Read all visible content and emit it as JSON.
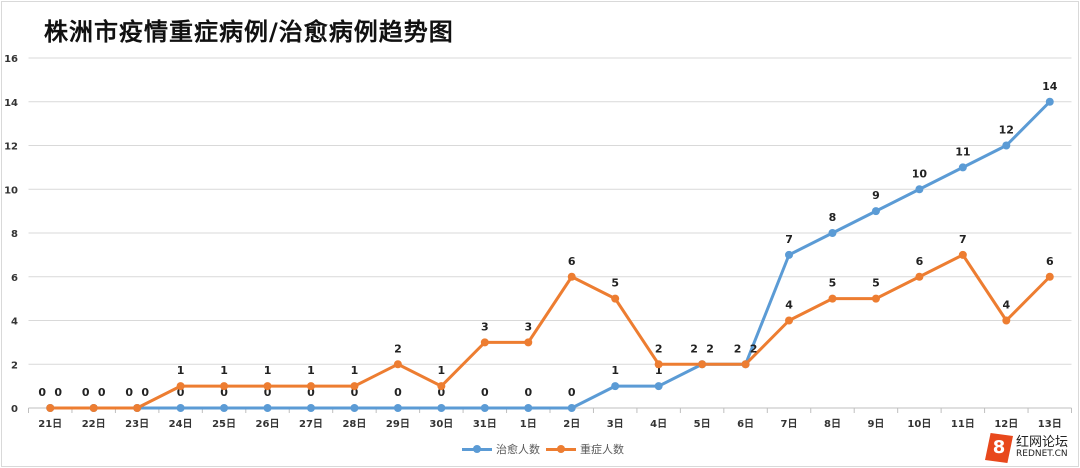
{
  "title": "株洲市疫情重症病例/治愈病例趋势图",
  "chart_data": {
    "type": "line",
    "title": "株洲市疫情重症病例/治愈病例趋势图",
    "xlabel": "",
    "ylabel": "",
    "categories": [
      "21日",
      "22日",
      "23日",
      "24日",
      "25日",
      "26日",
      "27日",
      "28日",
      "29日",
      "30日",
      "31日",
      "1日",
      "2日",
      "3日",
      "4日",
      "5日",
      "6日",
      "7日",
      "8日",
      "9日",
      "10日",
      "11日",
      "12日",
      "13日"
    ],
    "ylim": [
      0,
      16
    ],
    "yticks": [
      0,
      2,
      4,
      6,
      8,
      10,
      12,
      14,
      16
    ],
    "grid": true,
    "legend": "bottom",
    "data_labels": true,
    "series": [
      {
        "name": "治愈人数",
        "color": "#5b9bd5",
        "values": [
          0,
          0,
          0,
          0,
          0,
          0,
          0,
          0,
          0,
          0,
          0,
          0,
          0,
          1,
          1,
          2,
          2,
          7,
          8,
          9,
          10,
          11,
          12,
          14
        ]
      },
      {
        "name": "重症人数",
        "color": "#ed7d31",
        "values": [
          0,
          0,
          0,
          1,
          1,
          1,
          1,
          1,
          2,
          1,
          3,
          3,
          6,
          5,
          2,
          2,
          2,
          4,
          5,
          5,
          6,
          7,
          4,
          6
        ]
      }
    ]
  },
  "watermark": {
    "cn": "红网论坛",
    "en": "REDNET.CN"
  }
}
